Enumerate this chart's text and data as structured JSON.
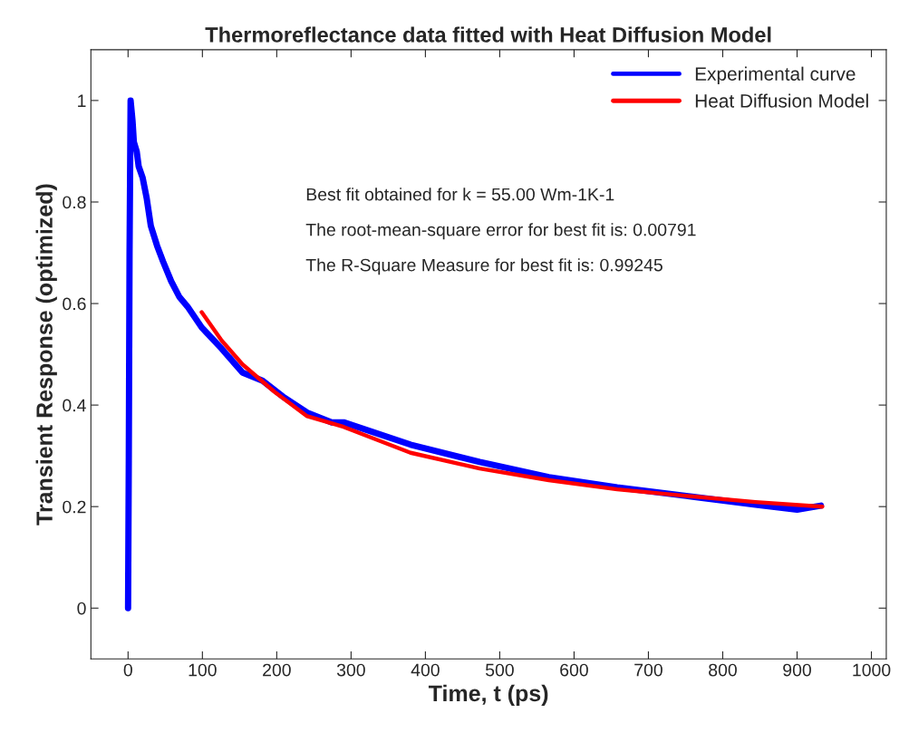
{
  "chart_data": {
    "type": "line",
    "title": "Thermoreflectance data fitted with Heat Diffusion Model",
    "xlabel": "Time, t (ps)",
    "ylabel": "Transient Response (optimized)",
    "xlim": [
      -50,
      1020
    ],
    "ylim": [
      -0.1,
      1.1
    ],
    "xticks": [
      0,
      100,
      200,
      300,
      400,
      500,
      600,
      700,
      800,
      900,
      1000
    ],
    "yticks": [
      0,
      0.2,
      0.4,
      0.6,
      0.8,
      1
    ],
    "grid": false,
    "legend": "top right",
    "line_style": "solid",
    "marker": "none",
    "annotations": [
      "Best fit obtained for k = 55.00 Wm-1K-1",
      "The root-mean-square error for best fit is: 0.00791",
      "The R-Square Measure for best fit is: 0.99245"
    ],
    "series": [
      {
        "name": "Experimental curve",
        "color": "#0000ff",
        "x": [
          0,
          1,
          2,
          3.4,
          6,
          7.8,
          11.6,
          14.3,
          19.6,
          25,
          30.6,
          39,
          47,
          58,
          69,
          80,
          99,
          126,
          154,
          181,
          208,
          241,
          274,
          290,
          380,
          473,
          566,
          658,
          751,
          844,
          900,
          932
        ],
        "values": [
          0,
          0.3,
          0.7,
          1.0,
          0.96,
          0.918,
          0.9,
          0.87,
          0.848,
          0.808,
          0.753,
          0.714,
          0.683,
          0.644,
          0.613,
          0.594,
          0.553,
          0.511,
          0.464,
          0.448,
          0.417,
          0.385,
          0.366,
          0.366,
          0.322,
          0.288,
          0.258,
          0.238,
          0.221,
          0.204,
          0.194,
          0.202
        ]
      },
      {
        "name": "Heat Diffusion Model",
        "color": "#ff0000",
        "x": [
          99,
          126,
          154,
          197,
          241,
          290,
          380,
          473,
          566,
          658,
          751,
          844,
          934
        ],
        "values": [
          0.583,
          0.527,
          0.48,
          0.426,
          0.378,
          0.357,
          0.306,
          0.275,
          0.252,
          0.234,
          0.221,
          0.209,
          0.2
        ]
      }
    ]
  }
}
